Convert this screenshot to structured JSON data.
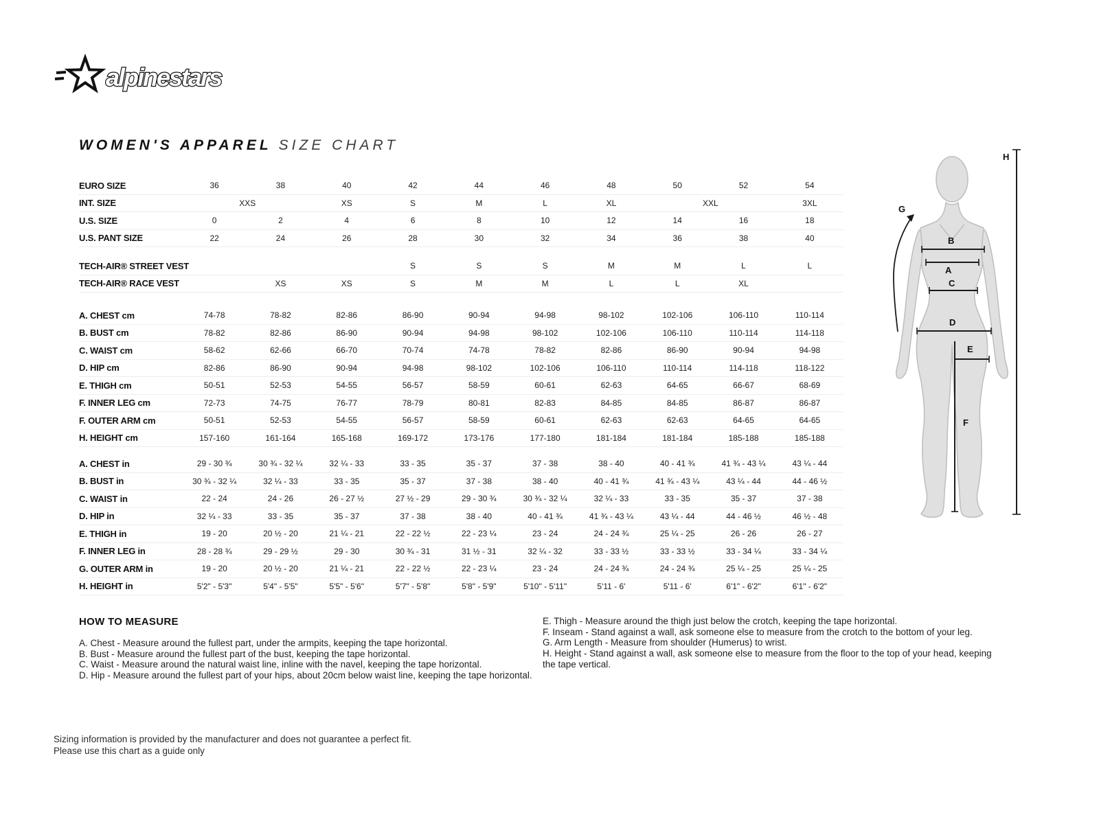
{
  "logo": {
    "brand": "alpinestars"
  },
  "title": {
    "main": "WOMEN'S APPAREL",
    "sub": "SIZE CHART"
  },
  "size_table": {
    "columns": [
      "36",
      "38",
      "40",
      "42",
      "44",
      "46",
      "48",
      "50",
      "52",
      "54"
    ],
    "groups": [
      {
        "rows": [
          {
            "label": "EURO SIZE",
            "cells": [
              "36",
              "38",
              "40",
              "42",
              "44",
              "46",
              "48",
              "50",
              "52",
              "54"
            ]
          },
          {
            "label": "INT. SIZE",
            "cells": [
              {
                "t": "XXS",
                "span": 2
              },
              "XS",
              "S",
              "M",
              "L",
              "XL",
              {
                "t": "XXL",
                "span": 2
              },
              "3XL"
            ]
          },
          {
            "label": "U.S. SIZE",
            "cells": [
              "0",
              "2",
              "4",
              "6",
              "8",
              "10",
              "12",
              "14",
              "16",
              "18"
            ]
          },
          {
            "label": "U.S. PANT SIZE",
            "cells": [
              "22",
              "24",
              "26",
              "28",
              "30",
              "32",
              "34",
              "36",
              "38",
              "40"
            ]
          }
        ]
      },
      {
        "rows": [
          {
            "label": "TECH-AIR® STREET VEST",
            "cells": [
              "",
              "",
              "",
              "S",
              "S",
              "S",
              "M",
              "M",
              "L",
              "L"
            ]
          },
          {
            "label": "TECH-AIR® RACE VEST",
            "cells": [
              "",
              "XS",
              "XS",
              "S",
              "M",
              "M",
              "L",
              "L",
              "XL",
              ""
            ]
          }
        ]
      },
      {
        "rows": [
          {
            "label": "A. CHEST cm",
            "cells": [
              "74-78",
              "78-82",
              "82-86",
              "86-90",
              "90-94",
              "94-98",
              "98-102",
              "102-106",
              "106-110",
              "110-114"
            ]
          },
          {
            "label": "B. BUST cm",
            "cells": [
              "78-82",
              "82-86",
              "86-90",
              "90-94",
              "94-98",
              "98-102",
              "102-106",
              "106-110",
              "110-114",
              "114-118"
            ]
          },
          {
            "label": "C. WAIST cm",
            "cells": [
              "58-62",
              "62-66",
              "66-70",
              "70-74",
              "74-78",
              "78-82",
              "82-86",
              "86-90",
              "90-94",
              "94-98"
            ]
          },
          {
            "label": "D. HIP cm",
            "cells": [
              "82-86",
              "86-90",
              "90-94",
              "94-98",
              "98-102",
              "102-106",
              "106-110",
              "110-114",
              "114-118",
              "118-122"
            ]
          },
          {
            "label": "E. THIGH cm",
            "cells": [
              "50-51",
              "52-53",
              "54-55",
              "56-57",
              "58-59",
              "60-61",
              "62-63",
              "64-65",
              "66-67",
              "68-69"
            ]
          },
          {
            "label": "F. INNER LEG cm",
            "cells": [
              "72-73",
              "74-75",
              "76-77",
              "78-79",
              "80-81",
              "82-83",
              "84-85",
              "84-85",
              "86-87",
              "86-87"
            ]
          },
          {
            "label": "F. OUTER ARM cm",
            "cells": [
              "50-51",
              "52-53",
              "54-55",
              "56-57",
              "58-59",
              "60-61",
              "62-63",
              "62-63",
              "64-65",
              "64-65"
            ]
          },
          {
            "label": "H. HEIGHT cm",
            "cells": [
              "157-160",
              "161-164",
              "165-168",
              "169-172",
              "173-176",
              "177-180",
              "181-184",
              "181-184",
              "185-188",
              "185-188"
            ]
          }
        ]
      },
      {
        "rows": [
          {
            "label": "A. CHEST in",
            "cells": [
              "29 - 30 ¾",
              "30 ¾ - 32 ¼",
              "32 ¼ - 33",
              "33 - 35",
              "35 - 37",
              "37 - 38",
              "38 - 40",
              "40 - 41 ¾",
              "41 ¾ - 43 ¼",
              "43 ¼ - 44"
            ]
          },
          {
            "label": "B. BUST in",
            "cells": [
              "30 ¾ - 32 ¼",
              "32 ¼ - 33",
              "33 - 35",
              "35 - 37",
              "37 - 38",
              "38 - 40",
              "40 - 41 ¾",
              "41 ¾ - 43 ¼",
              "43 ¼ - 44",
              "44 - 46 ½"
            ]
          },
          {
            "label": "C. WAIST in",
            "cells": [
              "22 - 24",
              "24 - 26",
              "26 - 27 ½",
              "27 ½ - 29",
              "29 - 30 ¾",
              "30 ¾ - 32 ¼",
              "32 ¼ - 33",
              "33 - 35",
              "35 - 37",
              "37 - 38"
            ]
          },
          {
            "label": "D. HIP in",
            "cells": [
              "32 ¼ - 33",
              "33 - 35",
              "35 - 37",
              "37 - 38",
              "38 - 40",
              "40 - 41 ¾",
              "41 ¾ - 43 ¼",
              "43 ¼ - 44",
              "44 - 46 ½",
              "46 ½ - 48"
            ]
          },
          {
            "label": "E. THIGH in",
            "cells": [
              "19 - 20",
              "20 ½ - 20",
              "21 ¼ - 21",
              "22 - 22 ½",
              "22 - 23 ¼",
              "23 - 24",
              "24 - 24 ¾",
              "25 ¼ - 25",
              "26 - 26",
              "26 - 27"
            ]
          },
          {
            "label": "F. INNER LEG in",
            "cells": [
              "28 - 28 ¾",
              "29 - 29 ½",
              "29 - 30",
              "30 ¾ - 31",
              "31 ½ - 31",
              "32 ¼ - 32",
              "33 - 33 ½",
              "33 - 33 ½",
              "33 - 34 ¼",
              "33 - 34 ¼"
            ]
          },
          {
            "label": "G. OUTER ARM in",
            "cells": [
              "19 - 20",
              "20 ½ - 20",
              "21 ¼ - 21",
              "22 - 22 ½",
              "22 - 23 ¼",
              "23 - 24",
              "24 - 24 ¾",
              "24 - 24 ¾",
              "25 ¼ - 25",
              "25 ¼ - 25"
            ]
          },
          {
            "label": "H. HEIGHT in",
            "cells": [
              "5'2\" - 5'3\"",
              "5'4\" - 5'5\"",
              "5'5\" - 5'6\"",
              "5'7\" - 5'8\"",
              "5'8\" - 5'9\"",
              "5'10\" - 5'11\"",
              "5'11 - 6'",
              "5'11 - 6'",
              "6'1\" - 6'2\"",
              "6'1\" - 6'2\""
            ]
          }
        ]
      }
    ]
  },
  "how_to_measure": {
    "heading": "HOW TO MEASURE",
    "left_items": [
      "A. Chest - Measure around the fullest part, under the armpits, keeping the tape horizontal.",
      "B. Bust - Measure around the fullest part of the bust, keeping the tape horizontal.",
      "C. Waist - Measure around the natural waist line, inline with the navel, keeping the tape horizontal.",
      "D. Hip - Measure around the fullest part of your hips, about 20cm below waist line, keeping the tape horizontal."
    ],
    "right_items": [
      "E. Thigh - Measure around the thigh just below the crotch, keeping the tape horizontal.",
      "F. Inseam - Stand against a wall, ask someone else to measure from the crotch to the bottom of your leg.",
      "G. Arm Length - Measure from shoulder (Humerus) to wrist.",
      "H. Height - Stand against a wall, ask someone else to measure from the floor to the top of your head, keeping the tape vertical."
    ]
  },
  "disclaimer": {
    "line1": "Sizing information is provided by the manufacturer and does not guarantee a perfect fit.",
    "line2": "Please use this chart as a guide only"
  },
  "diagram": {
    "labels": {
      "a": "A",
      "b": "B",
      "c": "C",
      "d": "D",
      "e": "E",
      "f": "F",
      "g": "G",
      "h": "H"
    }
  },
  "colors": {
    "text": "#1a1a1a",
    "separator": "#ededed",
    "silhouette": "#e0e0e0"
  }
}
